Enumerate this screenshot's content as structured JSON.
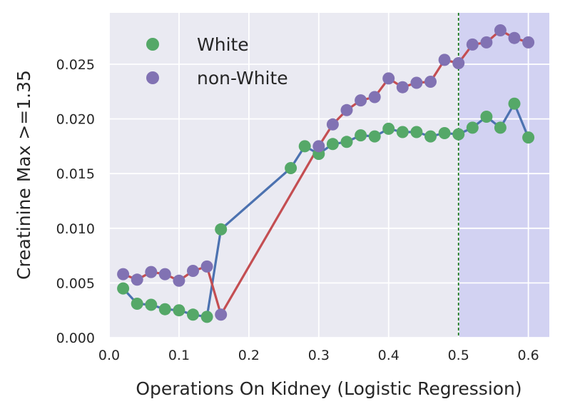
{
  "chart_data": {
    "type": "line",
    "title": "",
    "xlabel": "Operations On Kidney (Logistic Regression)",
    "ylabel": "Creatinine Max >=1.35",
    "xlim": [
      0.0,
      0.63
    ],
    "ylim": [
      0.0,
      0.0297
    ],
    "x_ticks": [
      0.0,
      0.1,
      0.2,
      0.3,
      0.4,
      0.5,
      0.6
    ],
    "x_tick_labels": [
      "0.0",
      "0.1",
      "0.2",
      "0.3",
      "0.4",
      "0.5",
      "0.6"
    ],
    "y_ticks": [
      0.0,
      0.005,
      0.01,
      0.015,
      0.02,
      0.025
    ],
    "y_tick_labels": [
      "0.000",
      "0.005",
      "0.010",
      "0.015",
      "0.020",
      "0.025"
    ],
    "grid": true,
    "legend_position": "top-left",
    "threshold": {
      "x": 0.5,
      "color": "#007000",
      "style": "dashed"
    },
    "shaded_region": {
      "x_from": 0.5,
      "x_to": 0.63,
      "color": "#d2d2f2"
    },
    "series": [
      {
        "name": "White",
        "marker_color": "#55a868",
        "line_color": "#4c72b0",
        "x": [
          0.02,
          0.04,
          0.06,
          0.08,
          0.1,
          0.12,
          0.14,
          0.16,
          0.26,
          0.28,
          0.3,
          0.32,
          0.34,
          0.36,
          0.38,
          0.4,
          0.42,
          0.44,
          0.46,
          0.48,
          0.5,
          0.52,
          0.54,
          0.56,
          0.58,
          0.6
        ],
        "values": [
          0.0045,
          0.0031,
          0.003,
          0.0026,
          0.0025,
          0.0021,
          0.0019,
          0.0099,
          0.0155,
          0.0175,
          0.0168,
          0.0177,
          0.0179,
          0.0185,
          0.0184,
          0.0191,
          0.0188,
          0.0188,
          0.0184,
          0.0187,
          0.0186,
          0.0192,
          0.0202,
          0.0192,
          0.0214,
          0.0183
        ]
      },
      {
        "name": "non-White",
        "marker_color": "#8172b3",
        "line_color": "#c44e52",
        "x": [
          0.02,
          0.04,
          0.06,
          0.08,
          0.1,
          0.12,
          0.14,
          0.16,
          0.3,
          0.32,
          0.34,
          0.36,
          0.38,
          0.4,
          0.42,
          0.44,
          0.46,
          0.48,
          0.5,
          0.52,
          0.54,
          0.56,
          0.58,
          0.6
        ],
        "values": [
          0.0058,
          0.0053,
          0.006,
          0.0058,
          0.0052,
          0.0061,
          0.0065,
          0.0021,
          0.0175,
          0.0195,
          0.0208,
          0.0217,
          0.022,
          0.0237,
          0.0229,
          0.0233,
          0.0234,
          0.0254,
          0.0251,
          0.0268,
          0.027,
          0.0281,
          0.0274,
          0.027
        ]
      }
    ]
  }
}
